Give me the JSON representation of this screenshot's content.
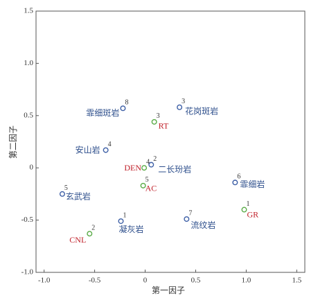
{
  "chart_data": {
    "type": "scatter",
    "x_label": "第一因子",
    "y_label": "第二因子",
    "xlim": [
      -1.08,
      1.58
    ],
    "ylim": [
      -1.0,
      1.5
    ],
    "xticks": [
      {
        "value": -1.0,
        "label": "-1.0"
      },
      {
        "value": -0.5,
        "label": "-0.5"
      },
      0,
      0.5,
      {
        "value": 1.0,
        "label": "1.0"
      },
      1.5
    ],
    "yticks": [
      {
        "value": -1.0,
        "label": "-1.0"
      },
      {
        "value": -0.5,
        "label": "-0.5"
      },
      0,
      0.5,
      {
        "value": 1.0,
        "label": "1.0"
      },
      1.5
    ],
    "series": [
      {
        "color": "#3d5fa6",
        "label_color": "#2e4f8c",
        "x": [
          -0.22,
          0.34,
          -0.39,
          0.06,
          0.89,
          -0.82,
          -0.24,
          0.41
        ],
        "values": [
          0.57,
          0.58,
          0.17,
          0.03,
          -0.14,
          -0.25,
          -0.51,
          -0.49
        ],
        "numbers": [
          "8",
          "3",
          "4",
          "2",
          "6",
          "5",
          "1",
          "7"
        ],
        "labels": [
          "霏细斑岩",
          "花岗斑岩",
          "安山岩",
          "二长玢岩",
          "霏细岩",
          "玄武岩",
          "凝灰岩",
          "流纹岩"
        ]
      },
      {
        "color": "#5aab47",
        "label_color": "#c0202a",
        "x": [
          0.09,
          -0.01,
          -0.02,
          0.98,
          -0.55
        ],
        "values": [
          0.44,
          0.0,
          -0.17,
          -0.4,
          -0.63
        ],
        "numbers": [
          "3",
          "4",
          "5",
          "1",
          "2"
        ],
        "labels": [
          "RT",
          "DEN",
          "AC",
          "GR",
          "CNL"
        ]
      }
    ]
  }
}
